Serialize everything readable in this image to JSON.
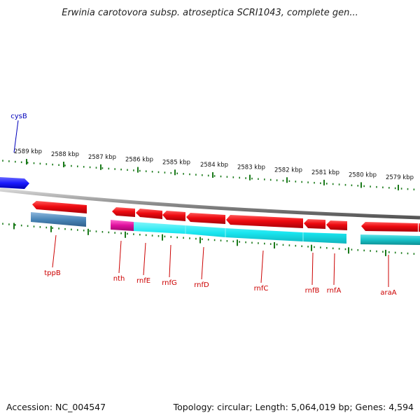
{
  "title": "Erwinia carotovora subsp. atroseptica SCRI1043, complete gen...",
  "footer": {
    "accession": "Accession: NC_004547",
    "summary": "Topology: circular; Length: 5,064,019 bp; Genes: 4,594"
  },
  "colors": {
    "forward_gene": "#e8000c",
    "reverse_gene_cyan": "#19e6f0",
    "reverse_gene_steel": "#4a86b8",
    "reverse_gene_magenta": "#e0109e",
    "reverse_gene_teal": "#18c2c8",
    "partial_gene_blue": "#1a1aff",
    "backbone": "#8c8c8c",
    "ticks": "#1a7a1a",
    "label_red": "#cc0000",
    "label_blue": "#0000bb"
  },
  "scale": {
    "unit": "kbp",
    "labels": [
      "2589 kbp",
      "2588 kbp",
      "2587 kbp",
      "2586 kbp",
      "2585 kbp",
      "2584 kbp",
      "2583 kbp",
      "2582 kbp",
      "2581 kbp",
      "2580 kbp",
      "2579 kbp"
    ]
  },
  "genes": [
    {
      "name": "cysB",
      "strand": "forward",
      "color": "partial_gene_blue",
      "label_color": "label_blue"
    },
    {
      "name": "tppB",
      "strand": "both",
      "color": "reverse_gene_steel",
      "label_color": "label_red"
    },
    {
      "name": "nth",
      "strand": "both",
      "color": "reverse_gene_magenta",
      "label_color": "label_red"
    },
    {
      "name": "rnfE",
      "strand": "both",
      "color": "reverse_gene_cyan",
      "label_color": "label_red"
    },
    {
      "name": "rnfG",
      "strand": "both",
      "color": "reverse_gene_cyan",
      "label_color": "label_red"
    },
    {
      "name": "rnfD",
      "strand": "both",
      "color": "reverse_gene_cyan",
      "label_color": "label_red"
    },
    {
      "name": "rnfC",
      "strand": "both",
      "color": "reverse_gene_cyan",
      "label_color": "label_red"
    },
    {
      "name": "rnfB",
      "strand": "both",
      "color": "reverse_gene_cyan",
      "label_color": "label_red"
    },
    {
      "name": "rnfA",
      "strand": "both",
      "color": "reverse_gene_cyan",
      "label_color": "label_red"
    },
    {
      "name": "araA",
      "strand": "both",
      "color": "reverse_gene_teal",
      "label_color": "label_red"
    }
  ]
}
